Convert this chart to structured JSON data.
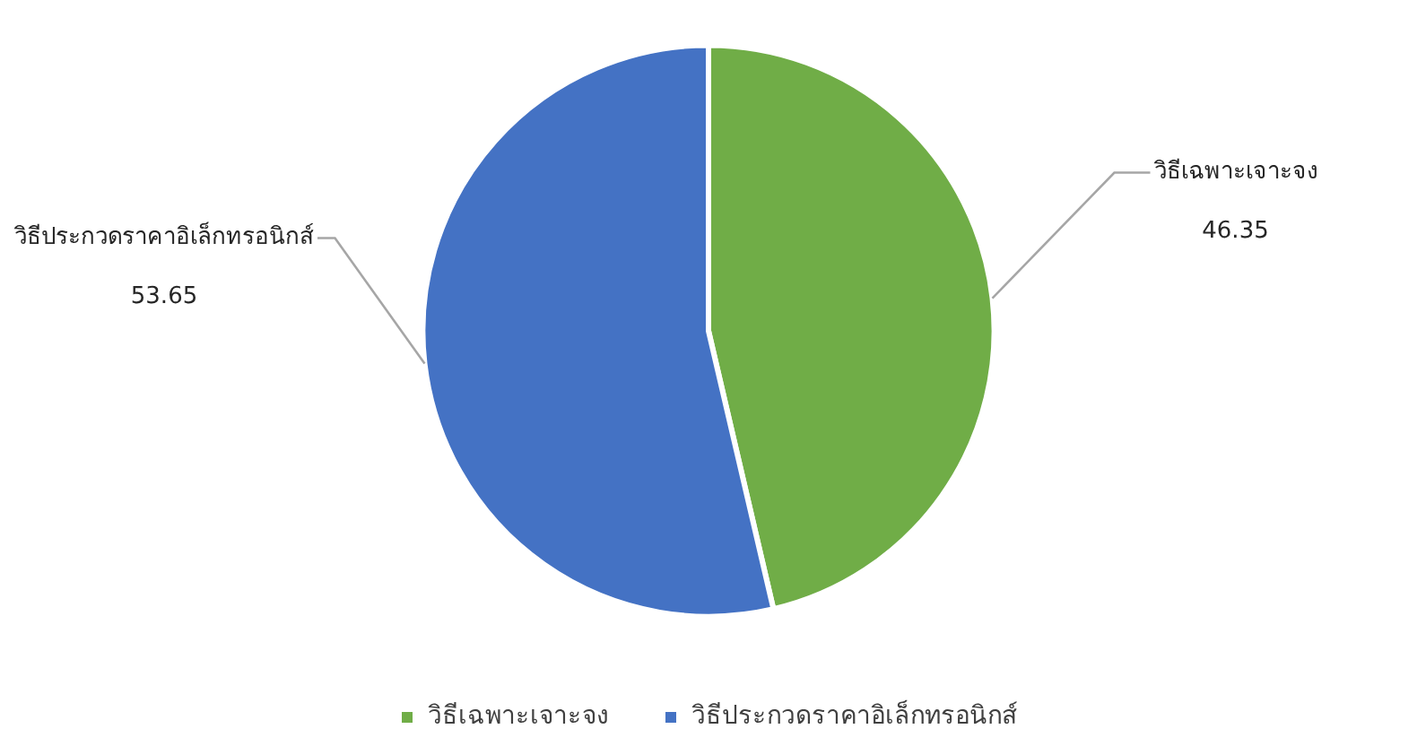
{
  "chart_data": {
    "type": "pie",
    "categories": [
      "วิธีเฉพาะเจาะจง",
      "วิธีประกวดราคาอิเล็กทรอนิกส์"
    ],
    "values": [
      46.35,
      53.65
    ],
    "colors": [
      "#70ad47",
      "#4472c4"
    ],
    "data_labels": true,
    "legend": "bottom"
  }
}
